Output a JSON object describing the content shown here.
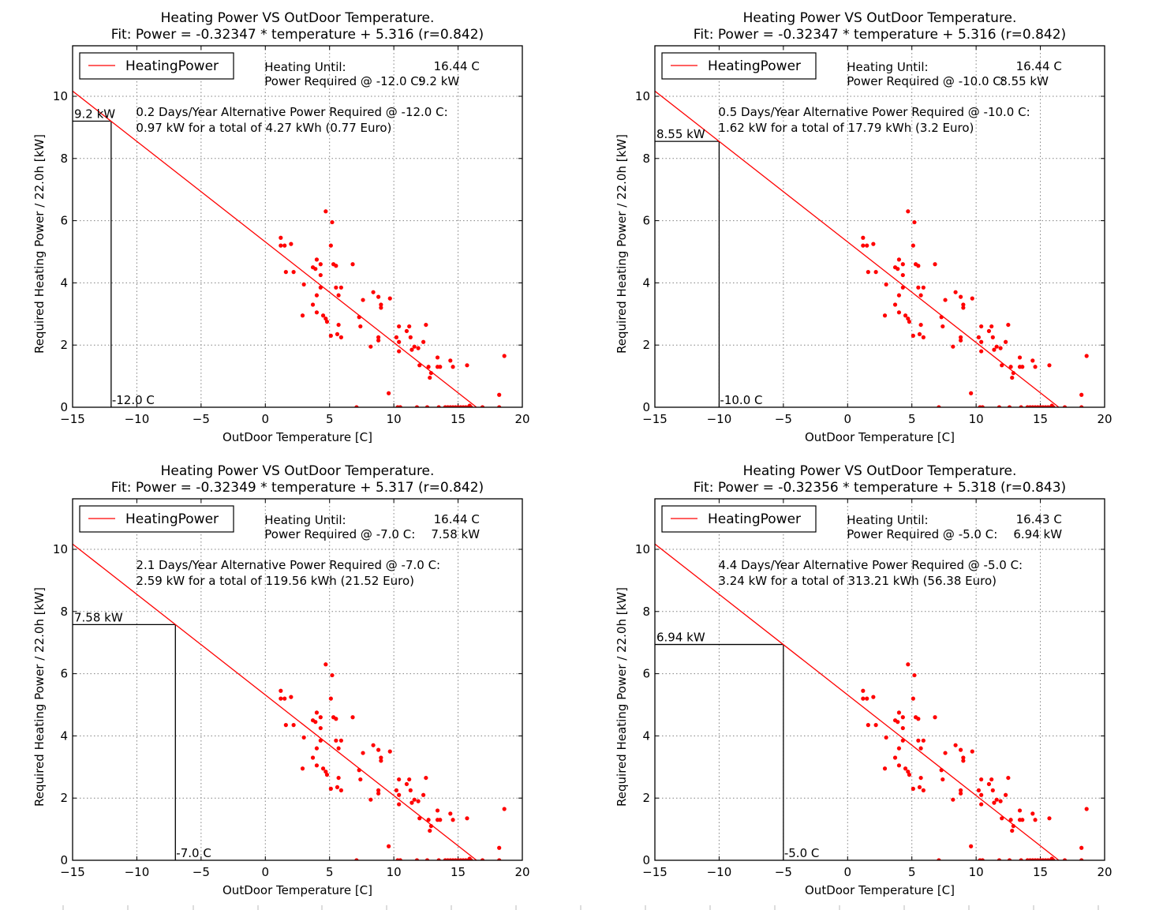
{
  "chart_data": [
    {
      "type": "scatter",
      "title": "Heating Power VS OutDoor Temperature.",
      "subtitle": "Fit: Power = -0.32347 * temperature + 5.316 (r=0.842)",
      "xlabel": "OutDoor Temperature [C]",
      "ylabel": "Required Heating Power / 22.0h [kW]",
      "xlim": [
        -15,
        20
      ],
      "ylim": [
        0,
        11.6
      ],
      "xticks": [
        "−15",
        "−10",
        "−5",
        "0",
        "5",
        "10",
        "15",
        "20"
      ],
      "yticks": [
        "0",
        "2",
        "4",
        "6",
        "8",
        "10"
      ],
      "grid": true,
      "legend": {
        "label": "HeatingPower",
        "position": "top-left"
      },
      "fit": {
        "slope": -0.32347,
        "intercept": 5.316
      },
      "threshold_temp": -12.0,
      "threshold_power": 9.2,
      "power_label": "9.2 kW",
      "temp_label": "-12.0 C",
      "info": {
        "heating_until_label": "Heating Until:",
        "heating_until_value": "16.44 C",
        "power_required_label": "Power Required @ -12.0 C:",
        "power_required_value": "9.2 kW",
        "alt_line1": "0.2 Days/Year Alternative Power Required @ -12.0 C:",
        "alt_line2": "0.97 kW for a total of 4.27 kWh (0.77 Euro)"
      }
    },
    {
      "type": "scatter",
      "title": "Heating Power VS OutDoor Temperature.",
      "subtitle": "Fit: Power = -0.32347 * temperature + 5.316 (r=0.842)",
      "xlabel": "OutDoor Temperature [C]",
      "ylabel": "Required Heating Power / 22.0h [kW]",
      "xlim": [
        -15,
        20
      ],
      "ylim": [
        0,
        11.6
      ],
      "xticks": [
        "−15",
        "−10",
        "−5",
        "0",
        "5",
        "10",
        "15",
        "20"
      ],
      "yticks": [
        "0",
        "2",
        "4",
        "6",
        "8",
        "10"
      ],
      "grid": true,
      "legend": {
        "label": "HeatingPower",
        "position": "top-left"
      },
      "fit": {
        "slope": -0.32347,
        "intercept": 5.316
      },
      "threshold_temp": -10.0,
      "threshold_power": 8.55,
      "power_label": "8.55 kW",
      "temp_label": "-10.0 C",
      "info": {
        "heating_until_label": "Heating Until:",
        "heating_until_value": "16.44 C",
        "power_required_label": "Power Required @ -10.0 C:",
        "power_required_value": "8.55 kW",
        "alt_line1": "0.5 Days/Year Alternative Power Required @ -10.0 C:",
        "alt_line2": "1.62 kW for a total of 17.79 kWh (3.2 Euro)"
      }
    },
    {
      "type": "scatter",
      "title": "Heating Power VS OutDoor Temperature.",
      "subtitle": "Fit: Power = -0.32349 * temperature + 5.317 (r=0.842)",
      "xlabel": "OutDoor Temperature [C]",
      "ylabel": "Required Heating Power / 22.0h [kW]",
      "xlim": [
        -15,
        20
      ],
      "ylim": [
        0,
        11.6
      ],
      "xticks": [
        "−15",
        "−10",
        "−5",
        "0",
        "5",
        "10",
        "15",
        "20"
      ],
      "yticks": [
        "0",
        "2",
        "4",
        "6",
        "8",
        "10"
      ],
      "grid": true,
      "legend": {
        "label": "HeatingPower",
        "position": "top-left"
      },
      "fit": {
        "slope": -0.32349,
        "intercept": 5.317
      },
      "threshold_temp": -7.0,
      "threshold_power": 7.58,
      "power_label": "7.58 kW",
      "temp_label": "-7.0 C",
      "info": {
        "heating_until_label": "Heating Until:",
        "heating_until_value": "16.44 C",
        "power_required_label": "Power Required @ -7.0 C:",
        "power_required_value": "7.58 kW",
        "alt_line1": "2.1 Days/Year Alternative Power Required @ -7.0 C:",
        "alt_line2": "2.59 kW for a total of 119.56 kWh (21.52 Euro)"
      }
    },
    {
      "type": "scatter",
      "title": "Heating Power VS OutDoor Temperature.",
      "subtitle": "Fit: Power = -0.32356 * temperature + 5.318 (r=0.843)",
      "xlabel": "OutDoor Temperature [C]",
      "ylabel": "Required Heating Power / 22.0h [kW]",
      "xlim": [
        -15,
        20
      ],
      "ylim": [
        0,
        11.6
      ],
      "xticks": [
        "−15",
        "−10",
        "−5",
        "0",
        "5",
        "10",
        "15",
        "20"
      ],
      "yticks": [
        "0",
        "2",
        "4",
        "6",
        "8",
        "10"
      ],
      "grid": true,
      "legend": {
        "label": "HeatingPower",
        "position": "top-left"
      },
      "fit": {
        "slope": -0.32356,
        "intercept": 5.318
      },
      "threshold_temp": -5.0,
      "threshold_power": 6.94,
      "power_label": "6.94 kW",
      "temp_label": "-5.0 C",
      "info": {
        "heating_until_label": "Heating Until:",
        "heating_until_value": "16.43 C",
        "power_required_label": "Power Required @ -5.0 C:",
        "power_required_value": "6.94 kW",
        "alt_line1": "4.4 Days/Year Alternative Power Required @ -5.0 C:",
        "alt_line2": "3.24 kW for a total of 313.21 kWh (56.38 Euro)"
      }
    }
  ],
  "scatter_points": [
    [
      1.2,
      5.45
    ],
    [
      1.2,
      5.2
    ],
    [
      1.5,
      5.2
    ],
    [
      2.0,
      5.25
    ],
    [
      1.6,
      4.35
    ],
    [
      2.2,
      4.35
    ],
    [
      3.0,
      3.95
    ],
    [
      2.9,
      2.95
    ],
    [
      3.7,
      4.5
    ],
    [
      3.9,
      4.45
    ],
    [
      4.0,
      4.75
    ],
    [
      4.3,
      4.6
    ],
    [
      4.3,
      4.25
    ],
    [
      4.3,
      3.85
    ],
    [
      4.0,
      3.6
    ],
    [
      3.7,
      3.3
    ],
    [
      4.0,
      3.05
    ],
    [
      4.5,
      2.95
    ],
    [
      4.7,
      2.85
    ],
    [
      4.8,
      2.75
    ],
    [
      4.7,
      6.3
    ],
    [
      5.2,
      5.95
    ],
    [
      5.1,
      5.2
    ],
    [
      5.3,
      4.6
    ],
    [
      5.5,
      4.55
    ],
    [
      5.5,
      3.85
    ],
    [
      5.7,
      3.6
    ],
    [
      5.9,
      3.85
    ],
    [
      5.7,
      2.65
    ],
    [
      5.1,
      2.3
    ],
    [
      5.6,
      2.35
    ],
    [
      5.9,
      2.25
    ],
    [
      6.8,
      4.6
    ],
    [
      7.3,
      2.9
    ],
    [
      7.4,
      2.6
    ],
    [
      7.6,
      3.45
    ],
    [
      8.2,
      1.95
    ],
    [
      8.4,
      3.7
    ],
    [
      8.8,
      3.55
    ],
    [
      8.8,
      2.25
    ],
    [
      8.8,
      2.15
    ],
    [
      9.0,
      3.3
    ],
    [
      9.0,
      3.2
    ],
    [
      9.7,
      3.5
    ],
    [
      9.6,
      0.45
    ],
    [
      10.2,
      2.25
    ],
    [
      10.4,
      2.6
    ],
    [
      10.4,
      2.1
    ],
    [
      10.4,
      1.8
    ],
    [
      11.0,
      2.45
    ],
    [
      11.2,
      2.6
    ],
    [
      11.3,
      2.25
    ],
    [
      11.4,
      1.85
    ],
    [
      11.6,
      1.95
    ],
    [
      11.9,
      1.9
    ],
    [
      12.0,
      1.35
    ],
    [
      12.3,
      2.1
    ],
    [
      12.5,
      2.65
    ],
    [
      12.7,
      1.3
    ],
    [
      12.8,
      0.95
    ],
    [
      12.9,
      1.1
    ],
    [
      13.4,
      1.6
    ],
    [
      13.4,
      1.3
    ],
    [
      13.6,
      1.3
    ],
    [
      14.4,
      1.5
    ],
    [
      14.6,
      1.3
    ],
    [
      15.7,
      1.35
    ],
    [
      18.6,
      1.65
    ],
    [
      18.2,
      0.4
    ],
    [
      15.9,
      0.05
    ],
    [
      7.1,
      0
    ],
    [
      10.3,
      0
    ],
    [
      10.5,
      0
    ],
    [
      11.8,
      0
    ],
    [
      12.6,
      0
    ],
    [
      13.5,
      0
    ],
    [
      14.0,
      0
    ],
    [
      14.2,
      0
    ],
    [
      14.4,
      0
    ],
    [
      14.6,
      0
    ],
    [
      14.8,
      0
    ],
    [
      15.0,
      0
    ],
    [
      15.2,
      0
    ],
    [
      15.4,
      0
    ],
    [
      15.6,
      0
    ],
    [
      15.8,
      0
    ],
    [
      16.0,
      0
    ],
    [
      16.9,
      0
    ],
    [
      18.2,
      0
    ]
  ],
  "colors": {
    "fit_line": "#ff0000",
    "points": "#ff0000",
    "axes": "#000000",
    "grid": "#808080",
    "marker_lines": "#000000"
  }
}
